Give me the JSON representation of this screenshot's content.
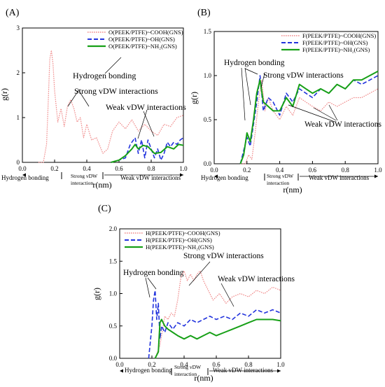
{
  "colors": {
    "cooh": "#f08a8a",
    "oh": "#2233dd",
    "nh2": "#17a017",
    "axis": "#000000"
  },
  "chart_data": [
    {
      "panel_label": "(A)",
      "type": "line",
      "xlabel": "r(nm)",
      "ylabel": "g(r)",
      "xlim": [
        0.0,
        1.0
      ],
      "ylim": [
        0,
        3
      ],
      "xticks": [
        "0.0",
        "0.2",
        "0.4",
        "0.6",
        "0.8",
        "1.0"
      ],
      "yticks": [
        "0",
        "1",
        "2",
        "3"
      ],
      "legend_position": "top-right",
      "series": [
        {
          "name": "O(PEEK/PTFE)~COOH(GNS)",
          "key": "cooh",
          "style": "dotted",
          "x": [
            0.1,
            0.13,
            0.15,
            0.16,
            0.17,
            0.18,
            0.19,
            0.2,
            0.22,
            0.24,
            0.26,
            0.28,
            0.3,
            0.32,
            0.34,
            0.36,
            0.38,
            0.4,
            0.43,
            0.46,
            0.5,
            0.53,
            0.56,
            0.6,
            0.64,
            0.68,
            0.72,
            0.76,
            0.8,
            0.84,
            0.88,
            0.92,
            0.96,
            1.0
          ],
          "y": [
            0.0,
            0.0,
            0.4,
            1.3,
            2.3,
            2.5,
            2.2,
            1.6,
            0.9,
            1.2,
            0.8,
            1.25,
            1.4,
            1.2,
            0.9,
            1.0,
            0.55,
            0.85,
            0.5,
            0.55,
            0.2,
            0.3,
            0.7,
            0.9,
            0.75,
            0.95,
            0.7,
            0.85,
            0.7,
            0.6,
            0.85,
            0.8,
            1.0,
            1.05
          ]
        },
        {
          "name": "O(PEEK/PTFE)~OH(GNS)",
          "key": "oh",
          "style": "dashed",
          "x": [
            0.55,
            0.6,
            0.64,
            0.67,
            0.7,
            0.72,
            0.74,
            0.76,
            0.78,
            0.8,
            0.82,
            0.84,
            0.86,
            0.88,
            0.9,
            0.92,
            0.94,
            0.96,
            0.98,
            1.0
          ],
          "y": [
            0.0,
            0.05,
            0.1,
            0.4,
            0.55,
            0.2,
            0.5,
            0.1,
            0.5,
            0.3,
            0.1,
            0.3,
            0.05,
            0.2,
            0.45,
            0.35,
            0.45,
            0.4,
            0.5,
            0.55
          ]
        },
        {
          "name": "O(PEEK/PTFE)~NH₂(GNS)",
          "key": "nh2",
          "style": "solid",
          "x": [
            0.55,
            0.6,
            0.64,
            0.68,
            0.7,
            0.72,
            0.75,
            0.78,
            0.82,
            0.86,
            0.9,
            0.94,
            0.97,
            1.0
          ],
          "y": [
            0.0,
            0.05,
            0.15,
            0.3,
            0.4,
            0.3,
            0.38,
            0.35,
            0.2,
            0.22,
            0.35,
            0.3,
            0.4,
            0.38
          ]
        }
      ],
      "annotations": [
        "Hydrogen bonding",
        "Strong vDW interactions",
        "Weak vDW interactions"
      ],
      "regions": [
        "Hydrogen bonding",
        "Strong vDW interaction",
        "Weak vDW interactions"
      ]
    },
    {
      "panel_label": "(B)",
      "type": "line",
      "xlabel": "r(nm)",
      "ylabel": "g(r)",
      "xlim": [
        0.0,
        1.0
      ],
      "ylim": [
        0,
        1.5
      ],
      "xticks": [
        "0.0",
        "0.2",
        "0.4",
        "0.6",
        "0.8",
        "1.0"
      ],
      "yticks": [
        "0.0",
        "0.5",
        "1.0",
        "1.5"
      ],
      "legend_position": "top-right",
      "series": [
        {
          "name": "F(PEEK/PTFE)~COOH(GNS)",
          "key": "cooh",
          "style": "dotted",
          "x": [
            0.16,
            0.19,
            0.21,
            0.23,
            0.25,
            0.27,
            0.29,
            0.31,
            0.33,
            0.36,
            0.4,
            0.44,
            0.48,
            0.52,
            0.56,
            0.6,
            0.65,
            0.7,
            0.75,
            0.8,
            0.85,
            0.9,
            0.95,
            1.0
          ],
          "y": [
            0.0,
            0.0,
            0.1,
            0.05,
            0.35,
            0.7,
            0.95,
            0.6,
            0.75,
            0.6,
            0.5,
            0.65,
            0.55,
            0.75,
            0.7,
            0.65,
            0.6,
            0.7,
            0.65,
            0.7,
            0.75,
            0.75,
            0.8,
            0.85
          ]
        },
        {
          "name": "F(PEEK/PTFE)~OH(GNS)",
          "key": "oh",
          "style": "dashed",
          "x": [
            0.16,
            0.18,
            0.2,
            0.22,
            0.24,
            0.26,
            0.28,
            0.3,
            0.33,
            0.36,
            0.4,
            0.44,
            0.48,
            0.52,
            0.56,
            0.6,
            0.65,
            0.7,
            0.75,
            0.8,
            0.85,
            0.9,
            0.95,
            1.0
          ],
          "y": [
            0.0,
            0.15,
            0.3,
            0.2,
            0.45,
            0.7,
            1.0,
            0.6,
            0.75,
            0.7,
            0.55,
            0.8,
            0.7,
            0.85,
            0.8,
            0.75,
            0.85,
            0.8,
            0.9,
            0.85,
            0.95,
            0.9,
            0.95,
            1.0
          ]
        },
        {
          "name": "F(PEEK/PTFE)~NH₂(GNS)",
          "key": "nh2",
          "style": "solid",
          "x": [
            0.16,
            0.18,
            0.2,
            0.22,
            0.24,
            0.26,
            0.28,
            0.3,
            0.33,
            0.36,
            0.4,
            0.44,
            0.48,
            0.52,
            0.56,
            0.6,
            0.65,
            0.7,
            0.75,
            0.8,
            0.85,
            0.9,
            0.95,
            1.0
          ],
          "y": [
            0.0,
            0.1,
            0.35,
            0.25,
            0.5,
            0.8,
            0.95,
            0.7,
            0.65,
            0.6,
            0.6,
            0.75,
            0.65,
            0.9,
            0.85,
            0.8,
            0.85,
            0.8,
            0.9,
            0.85,
            0.95,
            0.95,
            1.0,
            1.05
          ]
        }
      ],
      "annotations": [
        "Hydrogen bonding",
        "Strong vDW interactions",
        "Weak vDW interactions"
      ],
      "regions": [
        "Hydrogen bonding",
        "Strong vDW interaction",
        "Weak vDW interactions"
      ]
    },
    {
      "panel_label": "(C)",
      "type": "line",
      "xlabel": "r(nm)",
      "ylabel": "g(r)",
      "xlim": [
        0.0,
        1.0
      ],
      "ylim": [
        0,
        2.0
      ],
      "xticks": [
        "0.0",
        "0.2",
        "0.4",
        "0.6",
        "0.8",
        "1.0"
      ],
      "yticks": [
        "0.0",
        "0.5",
        "1.0",
        "1.5",
        "2.0"
      ],
      "legend_position": "top-left",
      "series": [
        {
          "name": "H(PEEK/PTFE)~COOH(GNS)",
          "key": "cooh",
          "style": "dotted",
          "x": [
            0.22,
            0.25,
            0.28,
            0.3,
            0.32,
            0.34,
            0.36,
            0.38,
            0.4,
            0.42,
            0.44,
            0.46,
            0.48,
            0.5,
            0.52,
            0.55,
            0.58,
            0.62,
            0.66,
            0.7,
            0.75,
            0.8,
            0.85,
            0.9,
            0.95,
            1.0
          ],
          "y": [
            0.0,
            0.2,
            0.65,
            0.6,
            0.7,
            0.65,
            0.9,
            1.25,
            1.35,
            1.2,
            1.3,
            1.2,
            1.3,
            1.35,
            1.2,
            1.05,
            0.9,
            1.0,
            0.85,
            0.95,
            1.0,
            0.95,
            1.05,
            1.0,
            1.1,
            1.05
          ]
        },
        {
          "name": "H(PEEK/PTFE)~OH(GNS)",
          "key": "oh",
          "style": "dashed",
          "x": [
            0.18,
            0.2,
            0.21,
            0.22,
            0.23,
            0.24,
            0.25,
            0.26,
            0.28,
            0.3,
            0.33,
            0.36,
            0.4,
            0.44,
            0.48,
            0.52,
            0.56,
            0.6,
            0.65,
            0.7,
            0.75,
            0.8,
            0.85,
            0.9,
            0.95,
            1.0
          ],
          "y": [
            0.0,
            0.5,
            0.9,
            1.05,
            0.6,
            0.85,
            0.3,
            0.5,
            0.4,
            0.55,
            0.45,
            0.55,
            0.5,
            0.6,
            0.55,
            0.6,
            0.65,
            0.6,
            0.65,
            0.6,
            0.7,
            0.65,
            0.75,
            0.7,
            0.75,
            0.7
          ]
        },
        {
          "name": "H(PEEK/PTFE)~NH₂(GNS)",
          "key": "nh2",
          "style": "solid",
          "x": [
            0.22,
            0.24,
            0.25,
            0.26,
            0.28,
            0.3,
            0.33,
            0.36,
            0.4,
            0.44,
            0.48,
            0.52,
            0.56,
            0.6,
            0.65,
            0.7,
            0.75,
            0.8,
            0.85,
            0.9,
            0.95,
            1.0
          ],
          "y": [
            0.0,
            0.1,
            0.55,
            0.6,
            0.5,
            0.45,
            0.4,
            0.35,
            0.3,
            0.35,
            0.3,
            0.35,
            0.4,
            0.35,
            0.4,
            0.45,
            0.5,
            0.55,
            0.6,
            0.6,
            0.6,
            0.58
          ]
        }
      ],
      "annotations": [
        "Hydrogen bonding",
        "Strong vDW interactions",
        "Weak vDW interactions"
      ],
      "regions": [
        "Hydrogen bonding",
        "Strong vDW interaction",
        "Weak vDW interactions"
      ]
    }
  ]
}
